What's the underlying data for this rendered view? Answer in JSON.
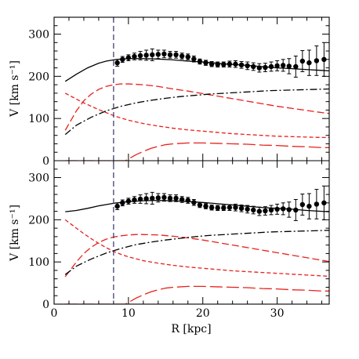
{
  "chart_data": {
    "type": "line",
    "xlabel": "R [kpc]",
    "ylabel": "V [km s⁻¹]",
    "xlim": [
      0,
      37
    ],
    "ylim": [
      0,
      340
    ],
    "x_ticks": [
      "0",
      "10",
      "20",
      "30"
    ],
    "y_ticks": [
      "0",
      "100",
      "200",
      "300"
    ],
    "vertical_marker_x": 8,
    "colors": {
      "total": "#000000",
      "components": "#e8201c",
      "marker": "#333366"
    },
    "data_points": {
      "x": [
        8.5,
        9.2,
        10.0,
        10.8,
        11.6,
        12.4,
        13.2,
        14.0,
        14.8,
        15.6,
        16.4,
        17.2,
        18.0,
        18.8,
        19.6,
        20.4,
        21.2,
        22.0,
        22.8,
        23.6,
        24.4,
        25.2,
        26.0,
        26.8,
        27.6,
        28.4,
        29.2,
        30.0,
        30.8,
        31.6,
        32.5,
        33.4,
        34.3,
        35.3,
        36.3
      ],
      "y": [
        232,
        240,
        244,
        247,
        249,
        250,
        251,
        252,
        253,
        251,
        251,
        248,
        246,
        241,
        235,
        232,
        229,
        228,
        228,
        229,
        229,
        227,
        225,
        223,
        220,
        221,
        223,
        225,
        226,
        224,
        223,
        236,
        232,
        237,
        240
      ],
      "err": [
        8,
        7,
        7,
        8,
        10,
        12,
        14,
        10,
        9,
        8,
        8,
        7,
        7,
        7,
        6,
        6,
        6,
        6,
        6,
        7,
        8,
        8,
        9,
        9,
        10,
        10,
        11,
        12,
        14,
        18,
        25,
        25,
        30,
        35,
        40
      ]
    },
    "panels": [
      {
        "name": "top",
        "series": [
          {
            "style": "solid-black",
            "x": [
              1.5,
              3,
              4.5,
              6,
              7,
              8,
              9,
              10,
              12,
              14,
              16,
              18,
              20,
              22,
              24,
              26,
              28,
              30,
              32,
              34,
              36,
              37
            ],
            "y": [
              188,
              205,
              220,
              231,
              236,
              239,
              241,
              242,
              242,
              241,
              239,
              236,
              234,
              231,
              228,
              226,
              223,
              220,
              218,
              216,
              214,
              213
            ]
          },
          {
            "style": "short-dash-red",
            "x": [
              1.5,
              3,
              4,
              5,
              6,
              7,
              8,
              9,
              10,
              12,
              14,
              16,
              18,
              20,
              22,
              24,
              26,
              28,
              30,
              32,
              34,
              36,
              37
            ],
            "y": [
              160,
              146,
              137,
              129,
              121,
              114,
              107,
              101,
              96,
              88,
              82,
              77,
              73,
              70,
              67,
              64,
              62,
              60,
              58,
              57,
              56,
              55,
              55
            ]
          },
          {
            "style": "medium-dash-red",
            "x": [
              1.5,
              3,
              4,
              5,
              6,
              7,
              8,
              9,
              10,
              11,
              12,
              14,
              16,
              18,
              20,
              22,
              24,
              26,
              28,
              30,
              32,
              34,
              36,
              37
            ],
            "y": [
              72,
              118,
              142,
              158,
              169,
              176,
              180,
              182,
              182,
              181,
              180,
              176,
              170,
              165,
              159,
              153,
              147,
              141,
              135,
              129,
              124,
              119,
              114,
              112
            ]
          },
          {
            "style": "dashdot-black",
            "x": [
              1.5,
              3,
              5,
              7,
              9,
              11,
              13,
              15,
              17,
              19,
              21,
              23,
              25,
              27,
              29,
              31,
              33,
              35,
              37
            ],
            "y": [
              62,
              84,
              103,
              118,
              129,
              137,
              143,
              148,
              152,
              155,
              158,
              160,
              162,
              164,
              166,
              167,
              168,
              169,
              170
            ]
          },
          {
            "style": "long-dash-red",
            "x": [
              1.5,
              5,
              9,
              9.6,
              10.2,
              11,
              12,
              13,
              14,
              15,
              16,
              18,
              20,
              22,
              24,
              26,
              28,
              30,
              32,
              34,
              36,
              37
            ],
            "y": [
              0,
              0,
              0,
              0,
              6,
              14,
              22,
              29,
              34,
              38,
              40,
              42,
              42,
              41,
              40,
              39,
              37,
              36,
              34,
              33,
              31,
              31
            ]
          }
        ]
      },
      {
        "name": "bottom",
        "series": [
          {
            "style": "solid-black",
            "x": [
              1.5,
              3,
              4.5,
              6,
              7,
              8,
              9,
              10,
              12,
              14,
              16,
              18,
              20,
              22,
              24,
              26,
              28,
              30,
              32,
              34,
              36,
              37
            ],
            "y": [
              219,
              222,
              227,
              233,
              236,
              239,
              241,
              243,
              245,
              246,
              245,
              243,
              241,
              238,
              235,
              232,
              229,
              227,
              225,
              222,
              220,
              219
            ]
          },
          {
            "style": "short-dash-red",
            "x": [
              1.5,
              3,
              4,
              5,
              6,
              7,
              8,
              9,
              10,
              12,
              14,
              16,
              18,
              20,
              22,
              24,
              26,
              28,
              30,
              32,
              34,
              36,
              37
            ],
            "y": [
              200,
              180,
              167,
              155,
              144,
              134,
              125,
              118,
              112,
              103,
              97,
              92,
              88,
              85,
              82,
              79,
              77,
              75,
              73,
              71,
              69,
              67,
              66
            ]
          },
          {
            "style": "medium-dash-red",
            "x": [
              1.5,
              3,
              4,
              5,
              6,
              7,
              8,
              9,
              10,
              11,
              12,
              14,
              16,
              18,
              20,
              22,
              24,
              26,
              28,
              30,
              32,
              34,
              36,
              37
            ],
            "y": [
              65,
              100,
              120,
              135,
              146,
              154,
              159,
              162,
              164,
              165,
              165,
              164,
              161,
              157,
              152,
              146,
              140,
              134,
              128,
              122,
              116,
              110,
              104,
              101
            ]
          },
          {
            "style": "dashdot-black",
            "x": [
              1.5,
              3,
              5,
              7,
              9,
              11,
              13,
              15,
              17,
              19,
              21,
              23,
              25,
              27,
              29,
              31,
              33,
              35,
              37
            ],
            "y": [
              70,
              90,
              107,
              121,
              132,
              141,
              147,
              152,
              156,
              160,
              163,
              165,
              167,
              169,
              171,
              172,
              173,
              174,
              175
            ]
          },
          {
            "style": "long-dash-red",
            "x": [
              1.5,
              5,
              9,
              9.6,
              10.2,
              11,
              12,
              13,
              14,
              15,
              16,
              18,
              20,
              22,
              24,
              26,
              28,
              30,
              32,
              34,
              36,
              37
            ],
            "y": [
              0,
              0,
              0,
              0,
              6,
              14,
              22,
              29,
              34,
              38,
              40,
              42,
              42,
              41,
              40,
              39,
              37,
              36,
              34,
              33,
              31,
              31
            ]
          }
        ]
      }
    ]
  }
}
